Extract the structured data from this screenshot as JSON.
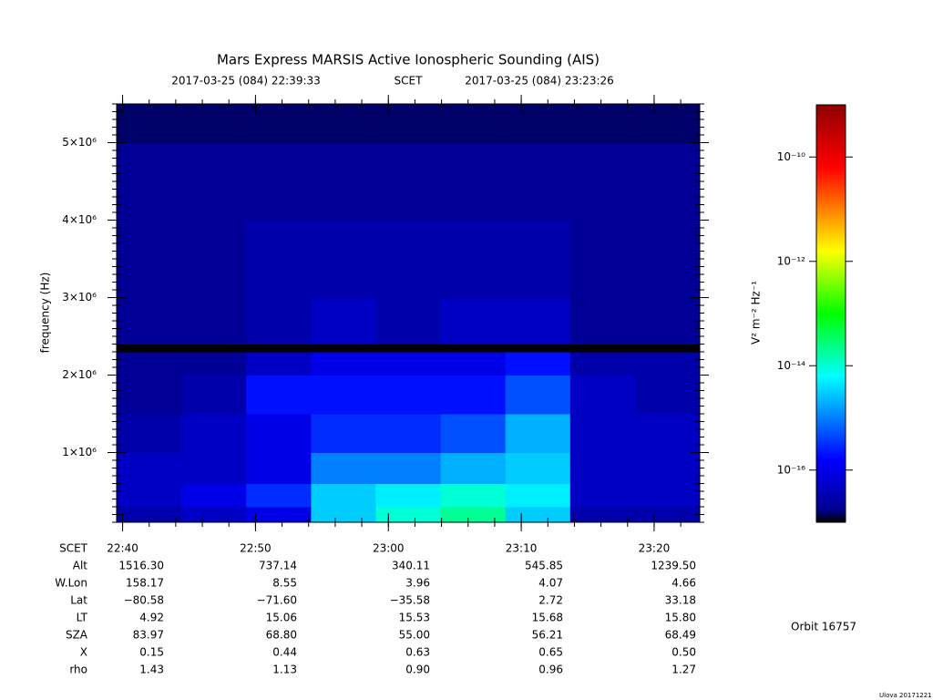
{
  "chart_data": {
    "type": "heatmap",
    "title": "Mars Express MARSIS Active Ionospheric Sounding (AIS)",
    "start": "2017-03-25 (084) 22:39:33",
    "time_label": "SCET",
    "end": "2017-03-25 (084) 23:23:26",
    "ylabel": "frequency (Hz)",
    "ylim": [
      100000,
      5500000
    ],
    "yticks": [
      {
        "value": 1000000,
        "label": "1×10⁶"
      },
      {
        "value": 2000000,
        "label": "2×10⁶"
      },
      {
        "value": 3000000,
        "label": "3×10⁶"
      },
      {
        "value": 4000000,
        "label": "4×10⁶"
      },
      {
        "value": 5000000,
        "label": "5×10⁶"
      }
    ],
    "ybins": [
      100000,
      300000,
      600000,
      1000000,
      1500000,
      2000000,
      2300000,
      2400000,
      3000000,
      4000000,
      5000000,
      5500000
    ],
    "z": [
      [
        3e-17,
        5e-17,
        1e-16,
        3e-15,
        1e-14,
        2e-14,
        3e-15,
        3e-17,
        3e-17
      ],
      [
        5e-17,
        1e-16,
        3e-16,
        3e-15,
        5e-15,
        1e-14,
        5e-15,
        5e-17,
        5e-17
      ],
      [
        5e-17,
        5e-17,
        1e-16,
        1e-15,
        1e-15,
        2e-15,
        3e-15,
        5e-17,
        5e-17
      ],
      [
        3e-17,
        5e-17,
        1e-16,
        3e-16,
        3e-16,
        5e-16,
        2e-15,
        5e-17,
        5e-17
      ],
      [
        2e-17,
        3e-17,
        2e-16,
        2e-16,
        2e-16,
        2e-16,
        5e-16,
        5e-17,
        3e-17
      ],
      [
        2e-17,
        2e-17,
        5e-17,
        1e-16,
        1e-16,
        1e-16,
        2e-16,
        3e-17,
        3e-17
      ],
      [
        1e-17,
        1e-17,
        1e-17,
        1e-17,
        1e-17,
        1e-17,
        1e-17,
        1e-17,
        1e-17
      ],
      [
        2e-17,
        2e-17,
        3e-17,
        5e-17,
        3e-17,
        5e-17,
        5e-17,
        2e-17,
        2e-17
      ],
      [
        2e-17,
        2e-17,
        3e-17,
        3e-17,
        3e-17,
        3e-17,
        3e-17,
        2e-17,
        2e-17
      ],
      [
        2e-17,
        2e-17,
        2e-17,
        2e-17,
        2e-17,
        2e-17,
        2e-17,
        2e-17,
        2e-17
      ],
      [
        1.5e-17,
        1.5e-17,
        1.5e-17,
        1.5e-17,
        1.5e-17,
        1.5e-17,
        1.5e-17,
        1.5e-17,
        1.5e-17
      ]
    ],
    "log_scale": true,
    "zlim": [
      1e-17,
      1e-09
    ],
    "zticks": [
      {
        "value": 1e-16,
        "label": "10⁻¹⁶"
      },
      {
        "value": 1e-14,
        "label": "10⁻¹⁴"
      },
      {
        "value": 1e-12,
        "label": "10⁻¹²"
      },
      {
        "value": 1e-10,
        "label": "10⁻¹⁰"
      }
    ],
    "zlabel": "V² m⁻² Hz⁻¹",
    "table": {
      "rows": [
        {
          "label": "SCET",
          "values": [
            "22:40",
            "22:50",
            "23:00",
            "23:10",
            "23:20"
          ]
        },
        {
          "label": "Alt",
          "values": [
            "1516.30",
            "737.14",
            "340.11",
            "545.85",
            "1239.50"
          ]
        },
        {
          "label": "W.Lon",
          "values": [
            "158.17",
            "8.55",
            "3.96",
            "4.07",
            "4.66"
          ]
        },
        {
          "label": "Lat",
          "values": [
            "−80.58",
            "−71.60",
            "−35.58",
            "2.72",
            "33.18"
          ]
        },
        {
          "label": "LT",
          "values": [
            "4.92",
            "15.06",
            "15.53",
            "15.68",
            "15.80"
          ]
        },
        {
          "label": "SZA",
          "values": [
            "83.97",
            "68.80",
            "55.00",
            "56.21",
            "68.49"
          ]
        },
        {
          "label": "X",
          "values": [
            "0.15",
            "0.44",
            "0.63",
            "0.65",
            "0.50"
          ]
        },
        {
          "label": "rho",
          "values": [
            "1.43",
            "1.13",
            "0.90",
            "0.96",
            "1.27"
          ]
        }
      ]
    },
    "orbit": "Orbit 16757",
    "footer": "Ulova 20171221"
  }
}
